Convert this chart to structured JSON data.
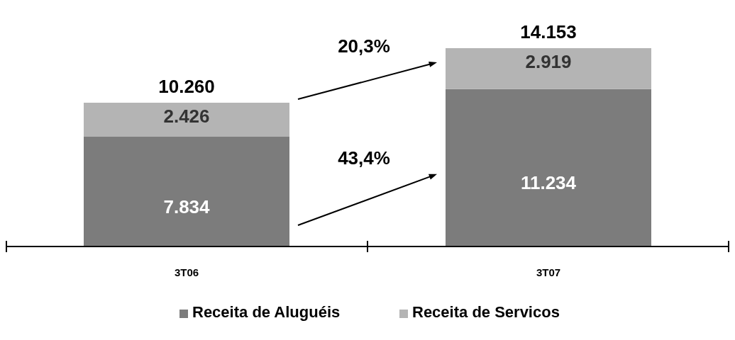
{
  "chart_data": {
    "type": "bar",
    "stacked": true,
    "categories": [
      "3T06",
      "3T07"
    ],
    "series": [
      {
        "name": "Receita de Aluguéis",
        "color": "#7c7c7c",
        "values": [
          7834,
          11234
        ],
        "value_labels": [
          "7.834",
          "11.234"
        ]
      },
      {
        "name": "Receita de Servicos",
        "color": "#b4b4b4",
        "values": [
          2426,
          2919
        ],
        "value_labels": [
          "2.426",
          "2.919"
        ]
      }
    ],
    "totals": [
      "10.260",
      "14.153"
    ],
    "annotations": [
      "20,3%",
      "43,4%"
    ],
    "legend": "bottom"
  }
}
